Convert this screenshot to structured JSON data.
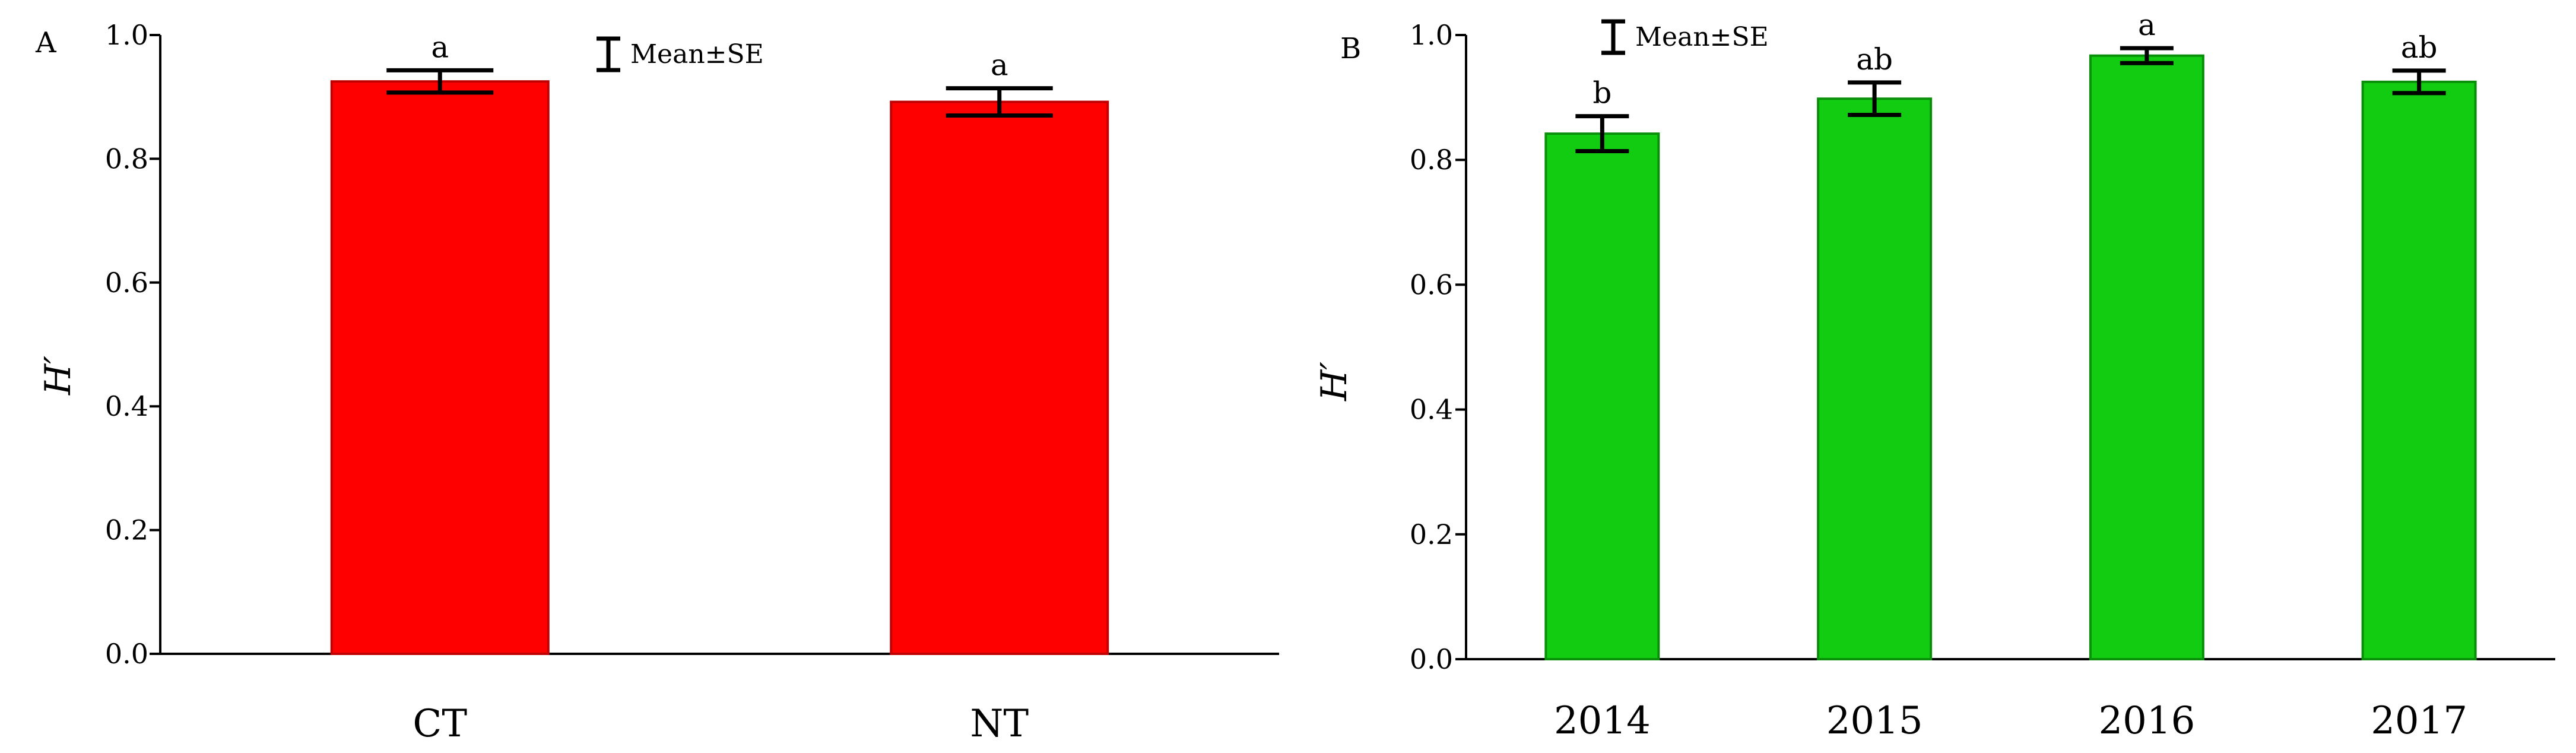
{
  "figure": {
    "panels": [
      {
        "id": "A",
        "letter": "A",
        "legend_label": "Mean±SE",
        "color": "#ff0000",
        "stroke_color": "#c00000"
      },
      {
        "id": "B",
        "letter": "B",
        "legend_label": "Mean±SE",
        "color": "#11cc11",
        "stroke_color": "#0a8f0a"
      }
    ]
  },
  "chart_data": [
    {
      "type": "bar",
      "panel": "A",
      "title": "",
      "xlabel": "",
      "ylabel": "H′",
      "ylim": [
        0,
        1.0
      ],
      "yticks": [
        "0.0",
        "0.2",
        "0.4",
        "0.6",
        "0.8",
        "1.0"
      ],
      "categories": [
        "CT",
        "NT"
      ],
      "values": [
        0.925,
        0.892
      ],
      "se": [
        0.018,
        0.022
      ],
      "significance": [
        "a",
        "a"
      ],
      "legend": "Mean±SE",
      "grid": false
    },
    {
      "type": "bar",
      "panel": "B",
      "title": "",
      "xlabel": "",
      "ylabel": "H′",
      "ylim": [
        0,
        1.0
      ],
      "yticks": [
        "0.0",
        "0.2",
        "0.4",
        "0.6",
        "0.8",
        "1.0"
      ],
      "categories": [
        "2014",
        "2015",
        "2016",
        "2017"
      ],
      "values": [
        0.842,
        0.898,
        0.967,
        0.925
      ],
      "se": [
        0.028,
        0.026,
        0.012,
        0.018
      ],
      "significance": [
        "b",
        "ab",
        "a",
        "ab"
      ],
      "legend": "Mean±SE",
      "grid": false
    }
  ]
}
